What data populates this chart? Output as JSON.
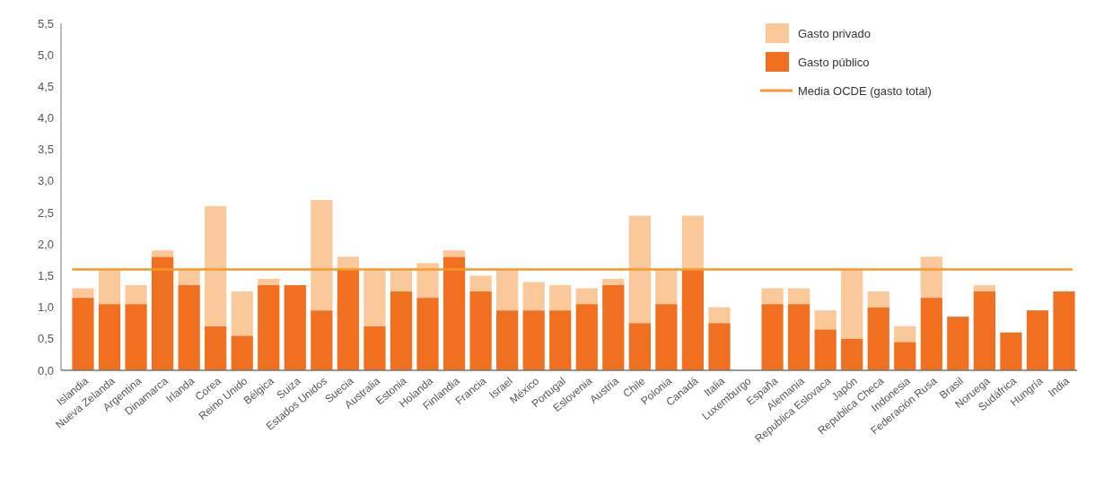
{
  "chart_data": {
    "type": "bar",
    "stacked": true,
    "categories": [
      "Islandia",
      "Nueva Zelanda",
      "Argentina",
      "Dinamarca",
      "Irlanda",
      "Corea",
      "Reino Unido",
      "Bélgica",
      "Suiza",
      "Estados Unidos",
      "Suecia",
      "Australia",
      "Estonia",
      "Holanda",
      "Finlandia",
      "Francia",
      "Israel",
      "México",
      "Portugal",
      "Eslovenia",
      "Austria",
      "Chile",
      "Polonia",
      "Canadá",
      "Italia",
      "Luxemburgo",
      "España",
      "Alemania",
      "Republica Eslovaca",
      "Japón",
      "Republica Checa",
      "Indonesia",
      "Federación Rusa",
      "Brasil",
      "Noruega",
      "Sudáfrica",
      "Hungría",
      "India"
    ],
    "series": [
      {
        "name": "Gasto público",
        "color": "#f07020",
        "values": [
          1.15,
          1.05,
          1.05,
          1.8,
          1.35,
          0.7,
          0.55,
          1.35,
          1.35,
          0.95,
          1.6,
          0.7,
          1.25,
          1.15,
          1.8,
          1.25,
          0.95,
          0.95,
          0.95,
          1.05,
          1.35,
          0.75,
          1.05,
          1.6,
          0.75,
          null,
          1.05,
          1.05,
          0.65,
          0.5,
          1.0,
          0.45,
          1.15,
          0.85,
          1.25,
          0.6,
          0.95,
          1.25
        ]
      },
      {
        "name": "Gasto privado",
        "color": "#fbc89a",
        "values": [
          0.15,
          0.55,
          0.3,
          0.1,
          0.25,
          1.9,
          0.7,
          0.1,
          null,
          1.75,
          0.2,
          0.9,
          0.35,
          0.55,
          0.1,
          0.25,
          0.65,
          0.45,
          0.4,
          0.25,
          0.1,
          1.7,
          0.55,
          0.85,
          0.25,
          null,
          0.25,
          0.25,
          0.3,
          1.1,
          0.25,
          0.25,
          0.65,
          null,
          0.1,
          null,
          null,
          null
        ]
      }
    ],
    "ylim": [
      0,
      5.5
    ],
    "yticks": [
      {
        "value": 0,
        "label": "0,0"
      },
      {
        "value": 0.5,
        "label": "0,5"
      },
      {
        "value": 1,
        "label": "1,0"
      },
      {
        "value": 1.5,
        "label": "1,5"
      },
      {
        "value": 2,
        "label": "2,0"
      },
      {
        "value": 2.5,
        "label": "2,5"
      },
      {
        "value": 3,
        "label": "3,0"
      },
      {
        "value": 3.5,
        "label": "3,5"
      },
      {
        "value": 4,
        "label": "4,0"
      },
      {
        "value": 4.5,
        "label": "4,5"
      },
      {
        "value": 5,
        "label": "5,0"
      },
      {
        "value": 5.5,
        "label": "5,5"
      }
    ],
    "ref_lines": [
      {
        "axis": "y",
        "value": 1.6,
        "label": "Media OCDE (gasto total)",
        "color": "#f39a2a"
      }
    ],
    "legend": "top right",
    "grid": false
  }
}
